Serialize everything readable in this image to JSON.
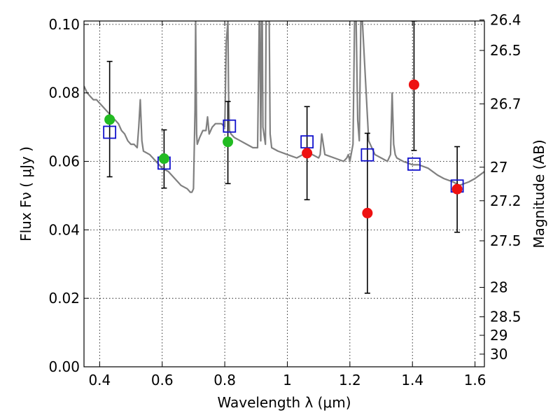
{
  "chart_data": {
    "type": "scatter",
    "xlabel": "Wavelength  λ (μm)",
    "ylabel": "Flux  Fν  ( μJy )",
    "ylabel_right": "Magnitude (AB)",
    "xlim": [
      0.35,
      1.63
    ],
    "ylim": [
      0.0,
      0.101
    ],
    "grid": true,
    "x_ticks": [
      0.4,
      0.6,
      0.8,
      1.0,
      1.2,
      1.4,
      1.6
    ],
    "x_tick_labels": [
      "0.4",
      "0.6",
      "0.8",
      "1",
      "1.2",
      "1.4",
      "1.6"
    ],
    "y_ticks": [
      0.0,
      0.02,
      0.04,
      0.06,
      0.08,
      0.1
    ],
    "y_tick_labels": [
      "0.00",
      "0.02",
      "0.04",
      "0.06",
      "0.08",
      "0.10"
    ],
    "right_ticks": [
      {
        "label": "26.4",
        "flux": 0.1013
      },
      {
        "label": "26.5",
        "flux": 0.0924
      },
      {
        "label": "26.7",
        "flux": 0.0768
      },
      {
        "label": "27",
        "flux": 0.0583
      },
      {
        "label": "27.2",
        "flux": 0.0485
      },
      {
        "label": "27.5",
        "flux": 0.0368
      },
      {
        "label": "28",
        "flux": 0.0232
      },
      {
        "label": "28.5",
        "flux": 0.0146
      },
      {
        "label": "29",
        "flux": 0.0092
      },
      {
        "label": "30",
        "flux": 0.0037
      }
    ],
    "colors": {
      "spectrum": "#808080",
      "green_points": "#22bb22",
      "red_points": "#ee1111",
      "model_squares": "#1111cc",
      "errorbars": "#000000",
      "grid": "#000000"
    },
    "spectrum": {
      "name": "",
      "x": [
        0.35,
        0.36,
        0.37,
        0.38,
        0.39,
        0.4,
        0.41,
        0.42,
        0.43,
        0.44,
        0.45,
        0.46,
        0.47,
        0.48,
        0.49,
        0.5,
        0.51,
        0.52,
        0.525,
        0.53,
        0.535,
        0.54,
        0.56,
        0.58,
        0.6,
        0.62,
        0.64,
        0.65,
        0.66,
        0.68,
        0.69,
        0.695,
        0.7,
        0.705,
        0.707,
        0.71,
        0.712,
        0.72,
        0.73,
        0.74,
        0.745,
        0.75,
        0.755,
        0.76,
        0.77,
        0.78,
        0.79,
        0.8,
        0.805,
        0.81,
        0.812,
        0.815,
        0.82,
        0.83,
        0.85,
        0.87,
        0.89,
        0.9,
        0.905,
        0.91,
        0.912,
        0.915,
        0.918,
        0.92,
        0.922,
        0.93,
        0.932,
        0.935,
        0.94,
        0.942,
        0.945,
        0.95,
        0.97,
        1.0,
        1.03,
        1.05,
        1.06,
        1.08,
        1.1,
        1.105,
        1.11,
        1.12,
        1.15,
        1.18,
        1.19,
        1.195,
        1.2,
        1.21,
        1.215,
        1.22,
        1.225,
        1.23,
        1.235,
        1.24,
        1.26,
        1.28,
        1.3,
        1.32,
        1.33,
        1.335,
        1.34,
        1.345,
        1.35,
        1.37,
        1.4,
        1.42,
        1.45,
        1.48,
        1.5,
        1.53,
        1.55,
        1.58,
        1.6,
        1.63
      ],
      "y": [
        0.082,
        0.08,
        0.079,
        0.078,
        0.078,
        0.077,
        0.076,
        0.075,
        0.074,
        0.073,
        0.072,
        0.071,
        0.069,
        0.068,
        0.066,
        0.065,
        0.065,
        0.064,
        0.07,
        0.078,
        0.066,
        0.063,
        0.062,
        0.06,
        0.058,
        0.057,
        0.055,
        0.054,
        0.053,
        0.052,
        0.051,
        0.051,
        0.052,
        0.075,
        0.101,
        0.068,
        0.065,
        0.067,
        0.069,
        0.069,
        0.073,
        0.068,
        0.069,
        0.07,
        0.071,
        0.071,
        0.071,
        0.07,
        0.095,
        0.101,
        0.08,
        0.069,
        0.068,
        0.067,
        0.066,
        0.065,
        0.064,
        0.064,
        0.064,
        0.101,
        0.101,
        0.066,
        0.101,
        0.101,
        0.07,
        0.065,
        0.101,
        0.101,
        0.101,
        0.101,
        0.068,
        0.064,
        0.063,
        0.062,
        0.061,
        0.062,
        0.063,
        0.062,
        0.061,
        0.062,
        0.068,
        0.062,
        0.061,
        0.06,
        0.061,
        0.062,
        0.06,
        0.065,
        0.101,
        0.101,
        0.072,
        0.066,
        0.101,
        0.101,
        0.066,
        0.062,
        0.061,
        0.06,
        0.062,
        0.08,
        0.065,
        0.062,
        0.061,
        0.06,
        0.059,
        0.059,
        0.058,
        0.056,
        0.055,
        0.054,
        0.053,
        0.054,
        0.055,
        0.057
      ]
    },
    "series": [
      {
        "name": "",
        "marker": "circle",
        "color": "green",
        "x": [
          0.432,
          0.606,
          0.81
        ],
        "y": [
          0.0722,
          0.0608,
          0.0657
        ],
        "yerr_low": [
          0.0555,
          0.0522,
          0.0535
        ],
        "yerr_high": [
          0.0892,
          0.0692,
          0.0775
        ]
      },
      {
        "name": "",
        "marker": "circle",
        "color": "red",
        "x": [
          1.063,
          1.256,
          1.405,
          1.543
        ],
        "y": [
          0.0624,
          0.0449,
          0.0824,
          0.0519
        ],
        "yerr_low": [
          0.0488,
          0.0215,
          0.0632,
          0.0393
        ],
        "yerr_high": [
          0.076,
          0.0682,
          0.101,
          0.0643
        ]
      },
      {
        "name": "",
        "marker": "square",
        "color": "blue",
        "x": [
          0.432,
          0.606,
          0.815,
          1.063,
          1.256,
          1.405,
          1.543
        ],
        "y": [
          0.0685,
          0.0595,
          0.0703,
          0.0657,
          0.0619,
          0.0592,
          0.0528
        ]
      }
    ]
  }
}
